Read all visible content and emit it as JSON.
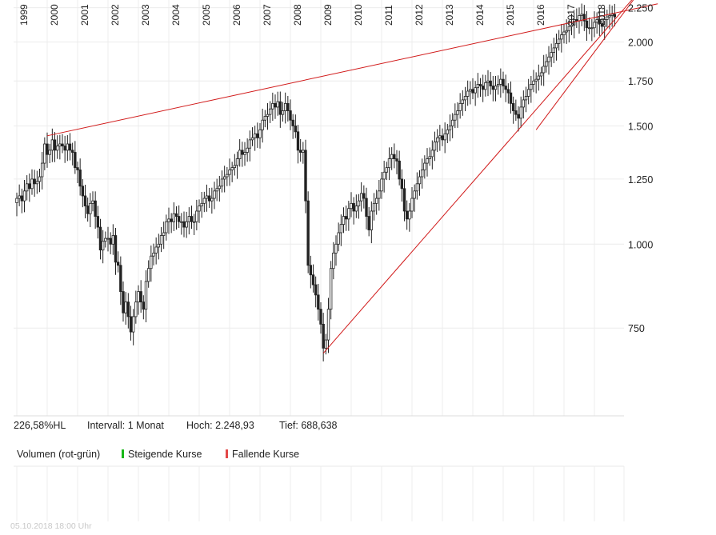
{
  "chart_data": {
    "type": "candlestick",
    "interval_months": 1,
    "x_start": "1999-01",
    "x_year_labels": [
      "1999",
      "2000",
      "2001",
      "2002",
      "2003",
      "2004",
      "2005",
      "2006",
      "2007",
      "2008",
      "2009",
      "2010",
      "2011",
      "2012",
      "2013",
      "2014",
      "2015",
      "2016",
      "2017",
      "2018"
    ],
    "y_scale": "log",
    "y_ticks": [
      {
        "value": 750,
        "label": "750"
      },
      {
        "value": 1000,
        "label": "1.000"
      },
      {
        "value": 1250,
        "label": "1.250"
      },
      {
        "value": 1500,
        "label": "1.500"
      },
      {
        "value": 1750,
        "label": "1.750"
      },
      {
        "value": 2000,
        "label": "2.000"
      },
      {
        "value": 2250,
        "label": "2.250"
      }
    ],
    "ylim": [
      555,
      2310
    ],
    "closes": [
      1170,
      1180,
      1160,
      1200,
      1230,
      1210,
      1250,
      1230,
      1240,
      1260,
      1320,
      1410,
      1360,
      1380,
      1430,
      1380,
      1400,
      1410,
      1400,
      1380,
      1410,
      1380,
      1370,
      1300,
      1290,
      1220,
      1180,
      1140,
      1110,
      1150,
      1160,
      1100,
      1060,
      980,
      1010,
      1020,
      1020,
      1000,
      1030,
      940,
      930,
      850,
      790,
      820,
      780,
      740,
      780,
      820,
      850,
      820,
      800,
      880,
      920,
      960,
      970,
      990,
      1000,
      1030,
      1040,
      1080,
      1090,
      1080,
      1110,
      1100,
      1080,
      1080,
      1060,
      1080,
      1100,
      1080,
      1080,
      1120,
      1140,
      1150,
      1170,
      1180,
      1160,
      1170,
      1200,
      1210,
      1220,
      1250,
      1260,
      1270,
      1290,
      1300,
      1310,
      1340,
      1380,
      1360,
      1370,
      1390,
      1430,
      1440,
      1460,
      1440,
      1480,
      1530,
      1550,
      1560,
      1590,
      1620,
      1600,
      1630,
      1560,
      1580,
      1620,
      1580,
      1530,
      1500,
      1470,
      1380,
      1370,
      1380,
      1160,
      930,
      900,
      870,
      840,
      800,
      760,
      700,
      720,
      800,
      920,
      970,
      1000,
      1040,
      1070,
      1100,
      1090,
      1130,
      1150,
      1120,
      1140,
      1160,
      1190,
      1170,
      1100,
      1050,
      1120,
      1150,
      1170,
      1200,
      1250,
      1280,
      1300,
      1340,
      1360,
      1340,
      1330,
      1250,
      1210,
      1120,
      1090,
      1120,
      1170,
      1200,
      1230,
      1260,
      1290,
      1320,
      1340,
      1350,
      1380,
      1420,
      1440,
      1450,
      1430,
      1460,
      1480,
      1500,
      1530,
      1560,
      1580,
      1620,
      1640,
      1660,
      1690,
      1700,
      1680,
      1710,
      1730,
      1720,
      1700,
      1740,
      1750,
      1720,
      1700,
      1720,
      1730,
      1760,
      1720,
      1700,
      1680,
      1620,
      1580,
      1560,
      1540,
      1600,
      1640,
      1660,
      1700,
      1730,
      1750,
      1760,
      1780,
      1800,
      1840,
      1870,
      1900,
      1930,
      1960,
      1990,
      2020,
      2050,
      2070,
      2080,
      2110,
      2120,
      2160,
      2150,
      2190,
      2200,
      2150,
      2100,
      2100,
      2100,
      2140,
      2160,
      2130,
      2110,
      2160,
      2180,
      2190,
      2200,
      2180
    ],
    "trendlines": [
      {
        "from": [
          "2000-01",
          1450
        ],
        "to": [
          "2020-02",
          2280
        ]
      },
      {
        "from": [
          "2009-02",
          688
        ],
        "to": [
          "2019-08",
          2410
        ]
      },
      {
        "from": [
          "2016-02",
          1480
        ],
        "to": [
          "2019-08",
          2410
        ]
      }
    ]
  },
  "stats": {
    "change": "226,58%HL",
    "interval": "Intervall: 1 Monat",
    "high": "Hoch:  2.248,93",
    "low": "Tief:  688,638"
  },
  "volume_panel": {
    "title": "Volumen (rot-grün)",
    "rising_label": "Steigende Kurse",
    "falling_label": "Fallende Kurse"
  },
  "colors": {
    "candles": "#222222",
    "trendline": "#d11a1a",
    "grid": "#ececec",
    "rising": "#18b818",
    "falling": "#e24848"
  },
  "timestamp": "05.10.2018 18:00 Uhr"
}
